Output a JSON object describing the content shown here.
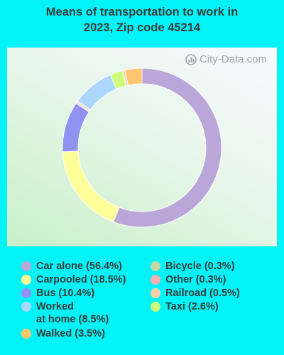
{
  "title_line1": "Means of transportation to work in",
  "title_line2": "2023, Zip code 45214",
  "watermark": "City-Data.com",
  "chart_data": {
    "type": "pie",
    "title": "Means of transportation to work in 2023, Zip code 45214",
    "slices": [
      {
        "name": "Car alone",
        "value": 56.4,
        "color": "#bba6da"
      },
      {
        "name": "Carpooled",
        "value": 18.5,
        "color": "#ffff99"
      },
      {
        "name": "Bus",
        "value": 10.4,
        "color": "#9191f0"
      },
      {
        "name": "Bicycle",
        "value": 0.3,
        "color": "#c4d8a8"
      },
      {
        "name": "Other",
        "value": 0.3,
        "color": "#f4b1b1"
      },
      {
        "name": "Worked at home",
        "value": 8.5,
        "color": "#acd6fb"
      },
      {
        "name": "Taxi",
        "value": 2.6,
        "color": "#ccff7a"
      },
      {
        "name": "Railroad",
        "value": 0.5,
        "color": "#ffd0a8"
      },
      {
        "name": "Walked",
        "value": 3.5,
        "color": "#ffc56e"
      }
    ]
  },
  "legend": [
    {
      "label": "Car alone (56.4%)",
      "color": "#bba6da"
    },
    {
      "label": "Carpooled (18.5%)",
      "color": "#ffff99"
    },
    {
      "label": "Bus (10.4%)",
      "color": "#9191f0"
    },
    {
      "label": "Worked\nat home (8.5%)",
      "color": "#acd6fb"
    },
    {
      "label": "Walked (3.5%)",
      "color": "#ffc56e"
    },
    {
      "label": "Bicycle (0.3%)",
      "color": "#c4d8a8"
    },
    {
      "label": "Other (0.3%)",
      "color": "#f4b1b1"
    },
    {
      "label": "Railroad (0.5%)",
      "color": "#ffd0a8"
    },
    {
      "label": "Taxi (2.6%)",
      "color": "#ccff7a"
    }
  ]
}
